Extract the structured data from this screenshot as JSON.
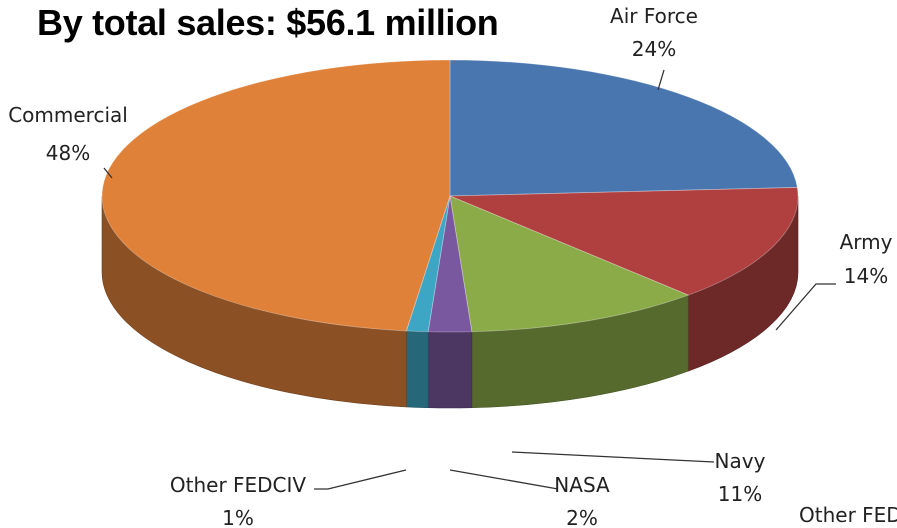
{
  "chart_data": {
    "type": "pie",
    "title": "By total sales: $56.1 million",
    "categories": [
      "Air Force",
      "Army",
      "Navy",
      "NASA",
      "Other FEDCIV",
      "Commercial"
    ],
    "values": [
      24,
      14,
      11,
      2,
      1,
      48
    ],
    "labels": [
      "24%",
      "14%",
      "11%",
      "2%",
      "1%",
      "48%"
    ],
    "colors": [
      "#4a76b0",
      "#b04040",
      "#8bab48",
      "#7a58a0",
      "#3da6c4",
      "#e0813a"
    ],
    "cut_off_label": "Other FED"
  }
}
